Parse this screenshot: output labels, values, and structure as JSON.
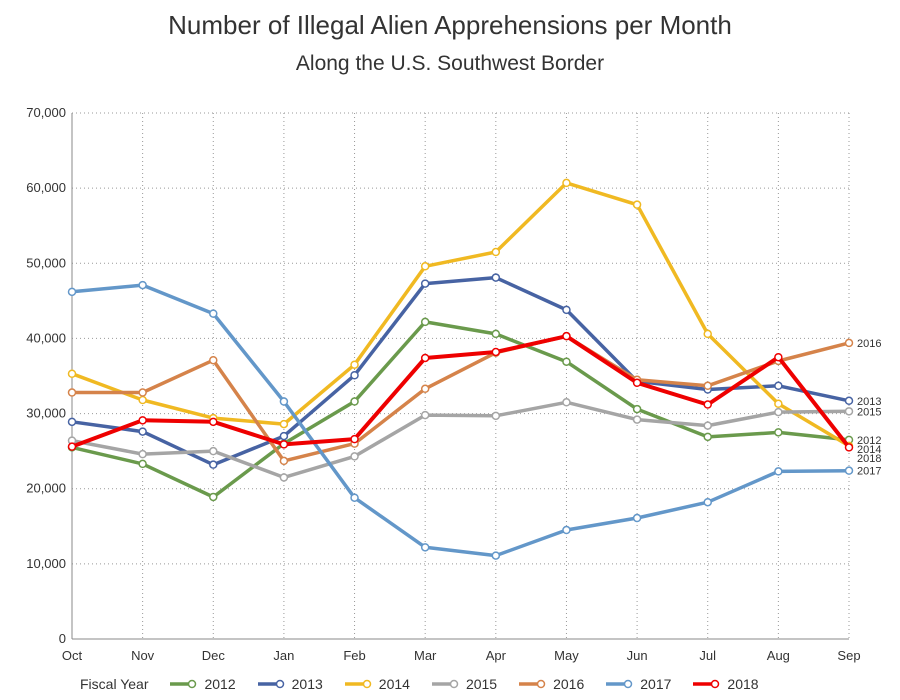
{
  "chart_data": {
    "type": "line",
    "title": "Number of Illegal Alien Apprehensions per Month",
    "subtitle": "Along the U.S. Southwest Border",
    "categories": [
      "Oct",
      "Nov",
      "Dec",
      "Jan",
      "Feb",
      "Mar",
      "Apr",
      "May",
      "Jun",
      "Jul",
      "Aug",
      "Sep"
    ],
    "yticks": [
      "0",
      "10,000",
      "20,000",
      "30,000",
      "40,000",
      "50,000",
      "60,000",
      "70,000"
    ],
    "ylim": [
      0,
      70000
    ],
    "grid": true,
    "legend_title": "Fiscal Year",
    "legend_position": "bottom",
    "series": [
      {
        "name": "2012",
        "color": "#6a9a4c",
        "values": [
          25500,
          23300,
          18900,
          26000,
          31600,
          42200,
          40600,
          36900,
          30600,
          26900,
          27500,
          26500
        ]
      },
      {
        "name": "2013",
        "color": "#4763a3",
        "values": [
          28900,
          27600,
          23200,
          27000,
          35100,
          47300,
          48100,
          43800,
          34300,
          33200,
          33700,
          31700
        ]
      },
      {
        "name": "2014",
        "color": "#f0b922",
        "values": [
          35300,
          31800,
          29400,
          28600,
          36500,
          49600,
          51500,
          60700,
          57800,
          40600,
          31300,
          25700
        ]
      },
      {
        "name": "2015",
        "color": "#a5a5a5",
        "values": [
          26400,
          24600,
          25000,
          21500,
          24300,
          29800,
          29700,
          31500,
          29200,
          28400,
          30200,
          30300
        ]
      },
      {
        "name": "2016",
        "color": "#d5834a",
        "values": [
          32800,
          32800,
          37100,
          23700,
          26000,
          33300,
          38100,
          40300,
          34500,
          33700,
          37000,
          39400
        ]
      },
      {
        "name": "2017",
        "color": "#6397c9",
        "values": [
          46200,
          47100,
          43300,
          31600,
          18800,
          12200,
          11100,
          14500,
          16100,
          18200,
          22300,
          22400
        ]
      },
      {
        "name": "2018",
        "color": "#ee0000",
        "values": [
          25600,
          29100,
          28900,
          25900,
          26600,
          37400,
          38200,
          40300,
          34100,
          31200,
          37500,
          25500
        ]
      }
    ]
  }
}
